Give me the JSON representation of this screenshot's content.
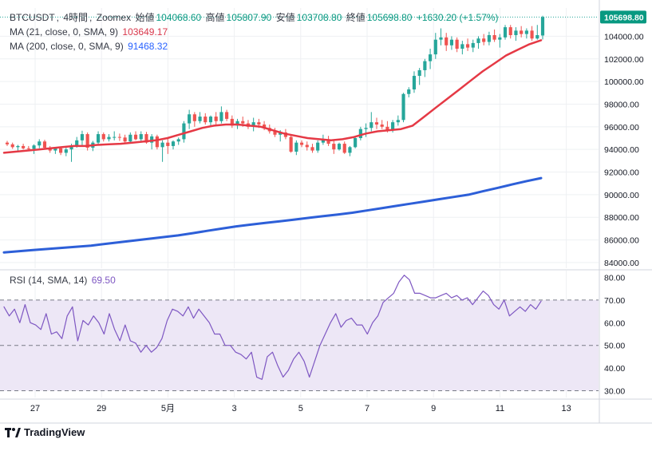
{
  "header": {
    "symbol": "BTCUSDT",
    "interval": "4時間",
    "exchange": "Zoomex",
    "open_label": "始値",
    "open_value": "104068.60",
    "high_label": "高値",
    "high_value": "105807.90",
    "low_label": "安値",
    "low_value": "103708.80",
    "close_label": "終値",
    "close_value": "105698.80",
    "change": "+1630.20 (+1.57%)"
  },
  "indicators": {
    "ma21_label": "MA (21, close, 0, SMA, 9)",
    "ma21_value": "103649.17",
    "ma200_label": "MA (200, close, 0, SMA, 9)",
    "ma200_value": "91468.32",
    "rsi_label": "RSI (14, SMA, 14)",
    "rsi_value": "69.50"
  },
  "brand": "TradingView",
  "colors": {
    "up": "#26a69a",
    "down": "#ef5350",
    "ma21": "#e53945",
    "ma200": "#2d5fd8",
    "rsi": "#7e57c2",
    "rsi_band": "#ede7f6",
    "grid": "#eef0f3",
    "label_bg": "#089981"
  },
  "chart_data": [
    {
      "type": "candlestick",
      "title": "BTCUSDT, 4時間, Zoomex",
      "y_ticks": [
        "84000.00",
        "86000.00",
        "88000.00",
        "90000.00",
        "92000.00",
        "94000.00",
        "96000.00",
        "98000.00",
        "100000.00",
        "102000.00",
        "104000.00"
      ],
      "ylim": [
        83500,
        106500
      ],
      "x_ticks": [
        "27",
        "29",
        "5月",
        "3",
        "5",
        "7",
        "9",
        "11",
        "13"
      ],
      "last_price_label": "105698.80",
      "candles": [
        [
          94600,
          94750,
          94300,
          94450
        ],
        [
          94450,
          94600,
          94050,
          94200
        ],
        [
          94200,
          94400,
          93900,
          94300
        ],
        [
          94300,
          94500,
          94000,
          94100
        ],
        [
          94100,
          94300,
          93850,
          94050
        ],
        [
          94050,
          94450,
          93600,
          94350
        ],
        [
          94350,
          94900,
          94100,
          94700
        ],
        [
          94700,
          94850,
          94000,
          94150
        ],
        [
          94150,
          94300,
          93700,
          93900
        ],
        [
          93900,
          94200,
          93600,
          94100
        ],
        [
          94100,
          94250,
          93500,
          93700
        ],
        [
          93700,
          94200,
          93400,
          94000
        ],
        [
          94000,
          94500,
          92900,
          94300
        ],
        [
          94300,
          95100,
          94150,
          94800
        ],
        [
          94800,
          95650,
          94350,
          95350
        ],
        [
          95350,
          95500,
          93900,
          94150
        ],
        [
          94150,
          94750,
          93850,
          94600
        ],
        [
          94600,
          95600,
          94400,
          95350
        ],
        [
          95350,
          95500,
          94700,
          94900
        ],
        [
          94900,
          95350,
          94700,
          95100
        ],
        [
          95100,
          95600,
          94800,
          95100
        ],
        [
          95100,
          95400,
          94750,
          95050
        ],
        [
          95050,
          95300,
          94500,
          94700
        ],
        [
          94700,
          95500,
          94600,
          95300
        ],
        [
          95300,
          95600,
          94800,
          94900
        ],
        [
          94900,
          95600,
          94600,
          95350
        ],
        [
          95350,
          95550,
          94500,
          94600
        ],
        [
          94600,
          95350,
          94000,
          95150
        ],
        [
          95150,
          95300,
          94000,
          94200
        ],
        [
          94200,
          94800,
          92900,
          94600
        ],
        [
          94600,
          95000,
          93600,
          94300
        ],
        [
          94300,
          94800,
          94000,
          94700
        ],
        [
          94700,
          95050,
          94400,
          94900
        ],
        [
          94900,
          96500,
          94600,
          96300
        ],
        [
          96300,
          97500,
          95800,
          97100
        ],
        [
          97100,
          97300,
          96000,
          96500
        ],
        [
          96500,
          97300,
          96300,
          96900
        ],
        [
          96900,
          97200,
          96200,
          96400
        ],
        [
          96400,
          97000,
          96000,
          96900
        ],
        [
          96900,
          97300,
          96200,
          96500
        ],
        [
          96500,
          97800,
          96300,
          97300
        ],
        [
          97300,
          97500,
          96500,
          96700
        ],
        [
          96700,
          97000,
          95900,
          96100
        ],
        [
          96100,
          96700,
          95800,
          96500
        ],
        [
          96500,
          96900,
          96000,
          96300
        ],
        [
          96300,
          96600,
          95800,
          96000
        ],
        [
          96000,
          96800,
          95600,
          96400
        ],
        [
          96400,
          96700,
          95900,
          96200
        ],
        [
          96200,
          96500,
          95700,
          95900
        ],
        [
          95900,
          96200,
          95400,
          95600
        ],
        [
          95600,
          95900,
          95100,
          95300
        ],
        [
          95300,
          95700,
          94700,
          95500
        ],
        [
          95500,
          95800,
          94900,
          95100
        ],
        [
          95100,
          95300,
          93700,
          93800
        ],
        [
          93800,
          94800,
          93500,
          94600
        ],
        [
          94600,
          94800,
          94200,
          94400
        ],
        [
          94400,
          94700,
          93900,
          94200
        ],
        [
          94200,
          94500,
          93700,
          93900
        ],
        [
          93900,
          94800,
          93700,
          94600
        ],
        [
          94600,
          95300,
          94400,
          94900
        ],
        [
          94900,
          95200,
          94300,
          94500
        ],
        [
          94500,
          94800,
          93600,
          94000
        ],
        [
          94000,
          94600,
          93900,
          94500
        ],
        [
          94500,
          94700,
          93600,
          93700
        ],
        [
          93700,
          94300,
          93400,
          94200
        ],
        [
          94200,
          95200,
          94100,
          95000
        ],
        [
          95000,
          96000,
          94800,
          95800
        ],
        [
          95800,
          96300,
          95100,
          95900
        ],
        [
          95900,
          97300,
          95600,
          96400
        ],
        [
          96400,
          96800,
          95800,
          96200
        ],
        [
          96200,
          96600,
          95800,
          96000
        ],
        [
          96000,
          96500,
          95500,
          95700
        ],
        [
          95700,
          96600,
          95500,
          96400
        ],
        [
          96400,
          97000,
          96100,
          96600
        ],
        [
          96600,
          99000,
          96400,
          98900
        ],
        [
          98900,
          99500,
          98600,
          99300
        ],
        [
          99300,
          100900,
          99000,
          100500
        ],
        [
          100500,
          101200,
          99700,
          101000
        ],
        [
          101000,
          102000,
          100400,
          101800
        ],
        [
          101800,
          102900,
          101100,
          102400
        ],
        [
          102400,
          104300,
          102000,
          103700
        ],
        [
          103700,
          104700,
          103200,
          103900
        ],
        [
          103900,
          104300,
          102700,
          103200
        ],
        [
          103200,
          104000,
          102800,
          103700
        ],
        [
          103700,
          103900,
          102600,
          102900
        ],
        [
          102900,
          103600,
          102400,
          103300
        ],
        [
          103300,
          103800,
          102700,
          103000
        ],
        [
          103000,
          103700,
          102600,
          103400
        ],
        [
          103400,
          104000,
          102900,
          103800
        ],
        [
          103800,
          104200,
          103200,
          103500
        ],
        [
          103500,
          104400,
          103200,
          104100
        ],
        [
          104100,
          104600,
          103500,
          103700
        ],
        [
          103700,
          104200,
          103000,
          103900
        ],
        [
          103900,
          105000,
          103700,
          104800
        ],
        [
          104800,
          105000,
          103800,
          104100
        ],
        [
          104100,
          104800,
          103600,
          104500
        ],
        [
          104500,
          104900,
          103900,
          104200
        ],
        [
          104200,
          104700,
          103800,
          104500
        ],
        [
          104500,
          104900,
          103600,
          103800
        ],
        [
          103800,
          105000,
          103700,
          104100
        ],
        [
          104068.6,
          105807.9,
          103708.8,
          105698.8
        ]
      ],
      "ma21": [
        93700,
        93800,
        93900,
        94000,
        94100,
        94200,
        94300,
        94300,
        94400,
        94450,
        94500,
        94600,
        94700,
        94800,
        95000,
        95300,
        95600,
        95900,
        96100,
        96200,
        96200,
        96100,
        96000,
        95700,
        95400,
        95200,
        95000,
        94900,
        94800,
        94900,
        95100,
        95400,
        95600,
        95700,
        95800,
        96100,
        96900,
        97700,
        98500,
        99300,
        100100,
        100900,
        101600,
        102300,
        102800,
        103300,
        103650
      ],
      "ma200": [
        84900,
        85000,
        85100,
        85200,
        85300,
        85400,
        85500,
        85650,
        85800,
        85950,
        86100,
        86250,
        86400,
        86600,
        86800,
        87000,
        87200,
        87350,
        87500,
        87650,
        87800,
        87950,
        88100,
        88250,
        88400,
        88600,
        88800,
        89000,
        89200,
        89400,
        89600,
        89800,
        90000,
        90300,
        90600,
        90900,
        91200,
        91468
      ]
    },
    {
      "type": "line",
      "title": "RSI (14, SMA, 14)",
      "y_ticks": [
        "30.00",
        "40.00",
        "50.00",
        "60.00",
        "70.00",
        "80.00"
      ],
      "ylim": [
        27,
        83
      ],
      "band": [
        30,
        70
      ],
      "midline": 50,
      "rsi": [
        67,
        63,
        66,
        60,
        68,
        60,
        59,
        57,
        64,
        55,
        56,
        53,
        63,
        67,
        52,
        61,
        59,
        63,
        60,
        55,
        64,
        57,
        52,
        59,
        52,
        51,
        47,
        50,
        47,
        49,
        53,
        61,
        66,
        65,
        63,
        67,
        62,
        66,
        63,
        60,
        55,
        55,
        50,
        50,
        47,
        46,
        44,
        47,
        36,
        35,
        45,
        47,
        41,
        36,
        39,
        44,
        47,
        43,
        36,
        43,
        50,
        55,
        60,
        64,
        58,
        61,
        62,
        59,
        59,
        55,
        60,
        63,
        69,
        71,
        73,
        78,
        81,
        79,
        73,
        73,
        72,
        71,
        71,
        72,
        73,
        71,
        72,
        70,
        71,
        68,
        71,
        74,
        72,
        68,
        66,
        70,
        63,
        65,
        67,
        65,
        68,
        66,
        69.5
      ]
    }
  ]
}
